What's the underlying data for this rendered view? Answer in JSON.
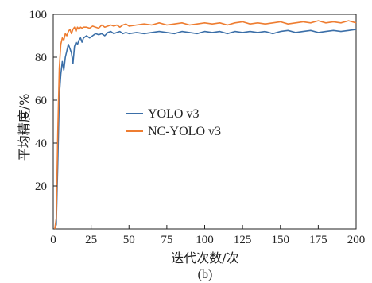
{
  "chart_data": {
    "type": "line",
    "panel_label": "(b)",
    "xlabel": "迭代次数/次",
    "ylabel": "平均精度/%",
    "xlim": [
      0,
      200
    ],
    "ylim": [
      0,
      100
    ],
    "xticks": [
      0,
      25,
      50,
      75,
      100,
      125,
      150,
      175,
      200
    ],
    "yticks": [
      20,
      40,
      60,
      80,
      100
    ],
    "legend_position": "center",
    "series": [
      {
        "name": "YOLO v3",
        "color": "#3b6fa8",
        "x": [
          1,
          2,
          3,
          4,
          5,
          6,
          7,
          8,
          9,
          10,
          11,
          12,
          13,
          14,
          15,
          16,
          17,
          18,
          19,
          20,
          22,
          24,
          26,
          28,
          30,
          32,
          34,
          36,
          38,
          40,
          42,
          44,
          46,
          48,
          50,
          55,
          60,
          65,
          70,
          75,
          80,
          85,
          90,
          95,
          100,
          105,
          110,
          115,
          120,
          125,
          130,
          135,
          140,
          145,
          150,
          155,
          160,
          165,
          170,
          175,
          180,
          185,
          190,
          195,
          200
        ],
        "y": [
          0,
          2,
          30,
          62,
          72,
          78,
          74,
          80,
          83,
          86,
          84,
          82,
          77,
          85,
          87,
          86,
          88,
          89,
          87,
          89,
          90,
          89,
          90,
          91,
          90.5,
          91,
          90,
          91.5,
          92,
          91,
          91.5,
          92,
          91,
          91.5,
          91,
          91.5,
          91,
          91.5,
          92,
          91.5,
          91,
          92,
          91.5,
          91,
          92,
          91.5,
          92,
          91,
          92,
          91.5,
          92,
          91.5,
          92,
          91,
          92,
          92.5,
          91.5,
          92,
          92.5,
          91.5,
          92,
          92.5,
          92,
          92.5,
          93
        ]
      },
      {
        "name": "NC-YOLO v3",
        "color": "#ee7d31",
        "x": [
          1,
          2,
          3,
          4,
          5,
          6,
          7,
          8,
          9,
          10,
          11,
          12,
          13,
          14,
          15,
          16,
          17,
          18,
          19,
          20,
          22,
          24,
          26,
          28,
          30,
          32,
          34,
          36,
          38,
          40,
          42,
          44,
          46,
          48,
          50,
          55,
          60,
          65,
          70,
          75,
          80,
          85,
          90,
          95,
          100,
          105,
          110,
          115,
          120,
          125,
          130,
          135,
          140,
          145,
          150,
          155,
          160,
          165,
          170,
          175,
          180,
          185,
          190,
          195,
          200
        ],
        "y": [
          0,
          5,
          45,
          75,
          86,
          89,
          88,
          91,
          90,
          92,
          93,
          91,
          93,
          94,
          92,
          94,
          93,
          94,
          93.5,
          94,
          94,
          93.5,
          94.5,
          94,
          93.5,
          95,
          94,
          94.5,
          95,
          94.5,
          95,
          94,
          95,
          95.5,
          94.5,
          95,
          95.5,
          95,
          96,
          95,
          95.5,
          96,
          95,
          95.5,
          96,
          95.5,
          96,
          95,
          96,
          96.5,
          95.5,
          96,
          95.5,
          96,
          96.5,
          95.5,
          96,
          96.5,
          96,
          97,
          96,
          96.5,
          96,
          97,
          96
        ]
      }
    ]
  }
}
